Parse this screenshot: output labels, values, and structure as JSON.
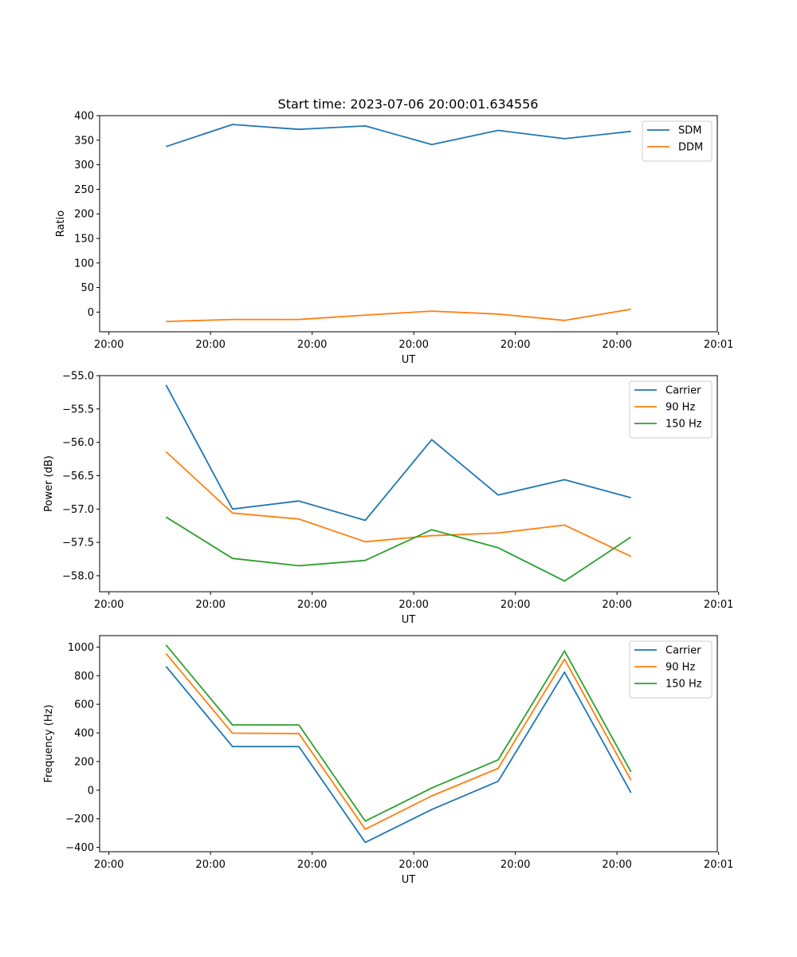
{
  "chart_data": [
    {
      "type": "line",
      "title": "Start time: 2023-07-06 20:00:01.634556",
      "xlabel": "UT",
      "ylabel": "Ratio",
      "x": [
        1,
        2,
        3,
        4,
        5,
        6,
        7,
        8
      ],
      "xlim": [
        0,
        9.3
      ],
      "x_ticks": [
        0.14,
        1.67,
        3.2,
        4.73,
        6.26,
        7.79,
        9.32
      ],
      "x_tick_labels": [
        "20:00",
        "20:00",
        "20:00",
        "20:00",
        "20:00",
        "20:00",
        "20:01"
      ],
      "ylim": [
        -40,
        400
      ],
      "y_ticks": [
        0,
        50,
        100,
        150,
        200,
        250,
        300,
        350,
        400
      ],
      "legend": "top-right",
      "series": [
        {
          "name": "SDM",
          "color": "#1f77b4",
          "values": [
            337,
            382,
            372,
            379,
            341,
            370,
            353,
            368
          ]
        },
        {
          "name": "DDM",
          "color": "#ff7f0e",
          "values": [
            -19,
            -15,
            -15,
            -6,
            2,
            -4,
            -17,
            6
          ]
        }
      ]
    },
    {
      "type": "line",
      "title": "",
      "xlabel": "UT",
      "ylabel": "Power (dB)",
      "x": [
        1,
        2,
        3,
        4,
        5,
        6,
        7,
        8
      ],
      "xlim": [
        0,
        9.3
      ],
      "x_ticks": [
        0.14,
        1.67,
        3.2,
        4.73,
        6.26,
        7.79,
        9.32
      ],
      "x_tick_labels": [
        "20:00",
        "20:00",
        "20:00",
        "20:00",
        "20:00",
        "20:00",
        "20:01"
      ],
      "ylim": [
        -58.24,
        -55.0
      ],
      "y_ticks": [
        -58.0,
        -57.5,
        -57.0,
        -56.5,
        -56.0,
        -55.5,
        -55.0
      ],
      "y_tick_labels": [
        "−58.0",
        "−57.5",
        "−57.0",
        "−56.5",
        "−56.0",
        "−55.5",
        "−55.0"
      ],
      "legend": "top-right",
      "series": [
        {
          "name": "Carrier",
          "color": "#1f77b4",
          "values": [
            -55.14,
            -57.0,
            -56.88,
            -57.17,
            -55.96,
            -56.79,
            -56.56,
            -56.83
          ]
        },
        {
          "name": "90 Hz",
          "color": "#ff7f0e",
          "values": [
            -56.14,
            -57.06,
            -57.15,
            -57.49,
            -57.4,
            -57.36,
            -57.24,
            -57.71
          ]
        },
        {
          "name": "150 Hz",
          "color": "#2ca02c",
          "values": [
            -57.12,
            -57.74,
            -57.85,
            -57.77,
            -57.31,
            -57.58,
            -58.08,
            -57.42
          ]
        }
      ]
    },
    {
      "type": "line",
      "title": "",
      "xlabel": "UT",
      "ylabel": "Frequency (Hz)",
      "x": [
        1,
        2,
        3,
        4,
        5,
        6,
        7,
        8
      ],
      "xlim": [
        0,
        9.3
      ],
      "x_ticks": [
        0.14,
        1.67,
        3.2,
        4.73,
        6.26,
        7.79,
        9.32
      ],
      "x_tick_labels": [
        "20:00",
        "20:00",
        "20:00",
        "20:00",
        "20:00",
        "20:00",
        "20:01"
      ],
      "ylim": [
        -430,
        1080
      ],
      "y_ticks": [
        -400,
        -200,
        0,
        200,
        400,
        600,
        800,
        1000
      ],
      "y_tick_labels": [
        "−400",
        "−200",
        "0",
        "200",
        "400",
        "600",
        "800",
        "1000"
      ],
      "legend": "top-right",
      "series": [
        {
          "name": "Carrier",
          "color": "#1f77b4",
          "values": [
            865,
            305,
            305,
            -365,
            -135,
            62,
            825,
            -18
          ]
        },
        {
          "name": "90 Hz",
          "color": "#ff7f0e",
          "values": [
            955,
            398,
            396,
            -273,
            -40,
            152,
            915,
            70
          ]
        },
        {
          "name": "150 Hz",
          "color": "#2ca02c",
          "values": [
            1015,
            456,
            456,
            -216,
            15,
            212,
            973,
            128
          ]
        }
      ]
    }
  ]
}
